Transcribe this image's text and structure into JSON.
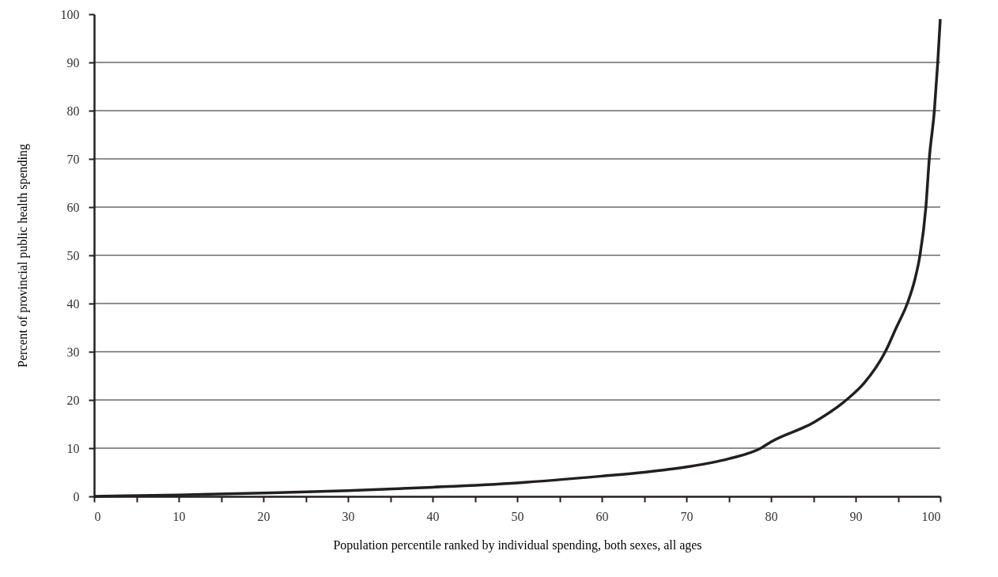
{
  "chart_data": {
    "type": "line",
    "xlabel": "Population percentile ranked by individual spending, both sexes, all ages",
    "ylabel": "Percent of provincial public health spending",
    "x": [
      0,
      10,
      20,
      30,
      40,
      50,
      60,
      65,
      70,
      75,
      78.8,
      80,
      85,
      88.9,
      91,
      93.5,
      94.8,
      96.1,
      97,
      97.6,
      98.3,
      98.7,
      99.3,
      99.7,
      100
    ],
    "series": [
      {
        "color": "#231f20",
        "values": [
          0,
          0.3,
          0.7,
          1.2,
          1.9,
          2.8,
          4.2,
          5,
          6.1,
          7.8,
          10,
          11.3,
          15.3,
          20,
          23.5,
          30,
          35,
          40,
          45,
          50,
          60,
          70,
          80,
          90,
          99
        ]
      }
    ],
    "xlim": [
      0,
      100
    ],
    "ylim": [
      0,
      100
    ],
    "xticks": [
      0,
      {
        "value": 5,
        "label": null
      },
      10,
      {
        "value": 15,
        "label": null
      },
      20,
      {
        "value": 25,
        "label": null
      },
      30,
      {
        "value": 35,
        "label": null
      },
      40,
      {
        "value": 45,
        "label": null
      },
      50,
      {
        "value": 55,
        "label": null
      },
      60,
      {
        "value": 65,
        "label": null
      },
      70,
      {
        "value": 75,
        "label": null
      },
      80,
      {
        "value": 85,
        "label": null
      },
      90,
      {
        "value": 95,
        "label": null
      },
      100
    ],
    "yticks": [
      0,
      10,
      20,
      30,
      40,
      50,
      60,
      70,
      80,
      90,
      100
    ],
    "grid": "y",
    "marker": "none",
    "line_style": "solid"
  }
}
